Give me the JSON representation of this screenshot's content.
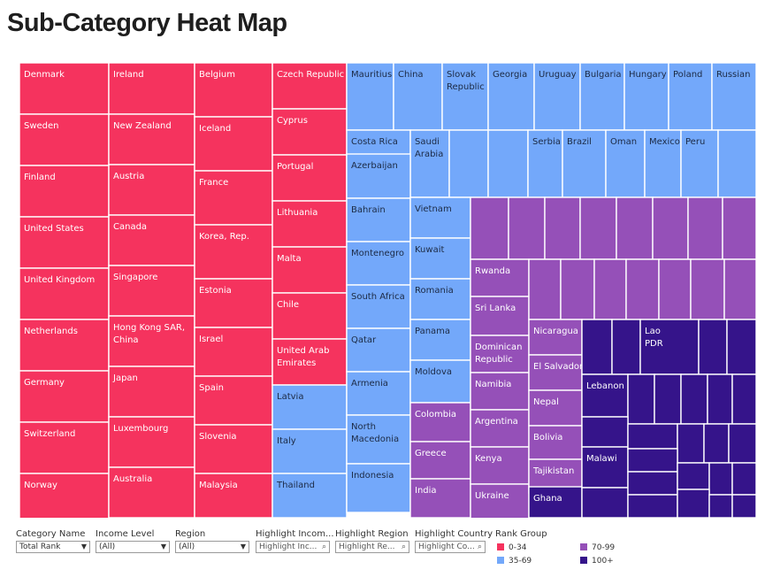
{
  "colors": {
    "rank_0_34": "#f5335e",
    "rank_35_69": "#73a8fa",
    "rank_70_99": "#9550b8",
    "rank_100_plus": "#35148a"
  },
  "chart_data": {
    "type": "treemap",
    "title": "Sub-Category Heat Map",
    "columns": [
      {
        "group": "0-34",
        "cells": [
          "Denmark",
          "Sweden",
          "Finland",
          "United States",
          "United Kingdom",
          "Netherlands",
          "Germany",
          "Switzerland",
          "Norway"
        ]
      },
      {
        "group": "0-34",
        "cells": [
          "Ireland",
          "New Zealand",
          "Austria",
          "Canada",
          "Singapore",
          "Hong Kong SAR, China",
          "Japan",
          "Luxembourg",
          "Australia"
        ]
      },
      {
        "group": "0-34",
        "cells": [
          "Belgium",
          "Iceland",
          "France",
          "Korea, Rep.",
          "Estonia",
          "Israel",
          "Spain",
          "Slovenia",
          "Malaysia"
        ]
      },
      {
        "group": "mixed",
        "cells": [
          {
            "label": "Czech Republic",
            "group": "0-34"
          },
          {
            "label": "Cyprus",
            "group": "0-34"
          },
          {
            "label": "Portugal",
            "group": "0-34"
          },
          {
            "label": "Lithuania",
            "group": "0-34"
          },
          {
            "label": "Malta",
            "group": "0-34"
          },
          {
            "label": "Chile",
            "group": "0-34"
          },
          {
            "label": "United Arab Emirates",
            "group": "0-34"
          },
          {
            "label": "Latvia",
            "group": "35-69"
          },
          {
            "label": "Italy",
            "group": "35-69"
          },
          {
            "label": "Thailand",
            "group": "35-69"
          }
        ]
      }
    ],
    "rows_35_69_top": [
      "Mauritius",
      "China",
      "Slovak Republic",
      "Georgia",
      "Uruguay",
      "Bulgaria",
      "Hungary",
      "Poland",
      "Russian"
    ],
    "rows_35_69_second": [
      "Costa Rica",
      "Saudi Arabia",
      "",
      "",
      "Serbia",
      "Brazil",
      "Oman",
      "Mexico",
      "Peru",
      ""
    ],
    "col_35_69_left": [
      "Azerbaijan",
      "Bahrain",
      "Montenegro",
      "South Africa",
      "Qatar",
      "Armenia",
      "North Macedonia",
      "Indonesia"
    ],
    "col_35_69_right": [
      "Vietnam",
      "Kuwait",
      "Romania",
      "Panama",
      "Moldova"
    ],
    "col_70_99_a": [
      "Colombia",
      "Greece",
      "India"
    ],
    "col_70_99_b": [
      "Rwanda",
      "Sri Lanka",
      "Dominican Republic",
      "Namibia",
      "Argentina",
      "Kenya",
      "Ukraine"
    ],
    "col_70_99_c": [
      "Nicaragua",
      "El Salvador",
      "Nepal",
      "Bolivia",
      "Tajikistan"
    ],
    "col_100_plus_labels": [
      "Ghana",
      "Lao PDR",
      "Lebanon",
      "Malawi"
    ],
    "legend": {
      "title": "Rank Group",
      "entries": [
        {
          "label": "0-34",
          "color": "#f5335e"
        },
        {
          "label": "35-69",
          "color": "#73a8fa"
        },
        {
          "label": "70-99",
          "color": "#9550b8"
        },
        {
          "label": "100+",
          "color": "#35148a"
        }
      ]
    }
  },
  "filters": [
    {
      "label": "Category Name",
      "value": "Total Rank",
      "kind": "select"
    },
    {
      "label": "Income Level",
      "value": "(All)",
      "kind": "select"
    },
    {
      "label": "Region",
      "value": "(All)",
      "kind": "select"
    },
    {
      "label": "Highlight Incom...",
      "value": "Highlight Inc...",
      "kind": "search"
    },
    {
      "label": "Highlight Region",
      "value": "Highlight Re...",
      "kind": "search"
    },
    {
      "label": "Highlight Country",
      "value": "Highlight Co...",
      "kind": "search"
    }
  ]
}
